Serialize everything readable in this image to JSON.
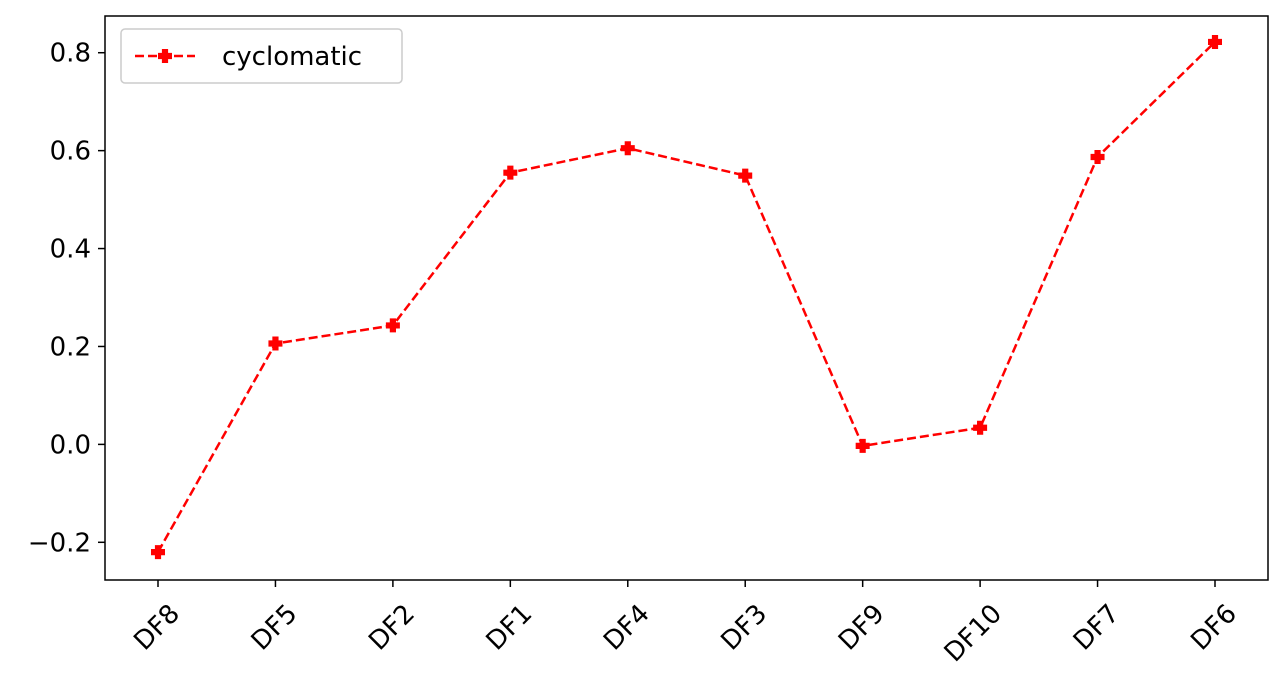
{
  "chart_data": {
    "type": "line",
    "title": "",
    "xlabel": "",
    "ylabel": "",
    "categories": [
      "DF8",
      "DF5",
      "DF2",
      "DF1",
      "DF4",
      "DF3",
      "DF9",
      "DF10",
      "DF7",
      "DF6"
    ],
    "series": [
      {
        "name": "cyclomatic",
        "values": [
          -0.22,
          0.206,
          0.243,
          0.555,
          0.605,
          0.549,
          -0.003,
          0.034,
          0.587,
          0.822
        ],
        "color": "#ff0000",
        "line_style": "dashed",
        "marker": "plus-filled"
      }
    ],
    "ylim": [
      -0.277,
      0.875
    ],
    "yticks": [
      -0.2,
      0.0,
      0.2,
      0.4,
      0.6,
      0.8
    ],
    "ytick_labels": [
      "−0.2",
      "0.0",
      "0.2",
      "0.4",
      "0.6",
      "0.8"
    ],
    "grid": false,
    "legend_position": "upper-left",
    "xtick_rotation_deg": 45
  }
}
